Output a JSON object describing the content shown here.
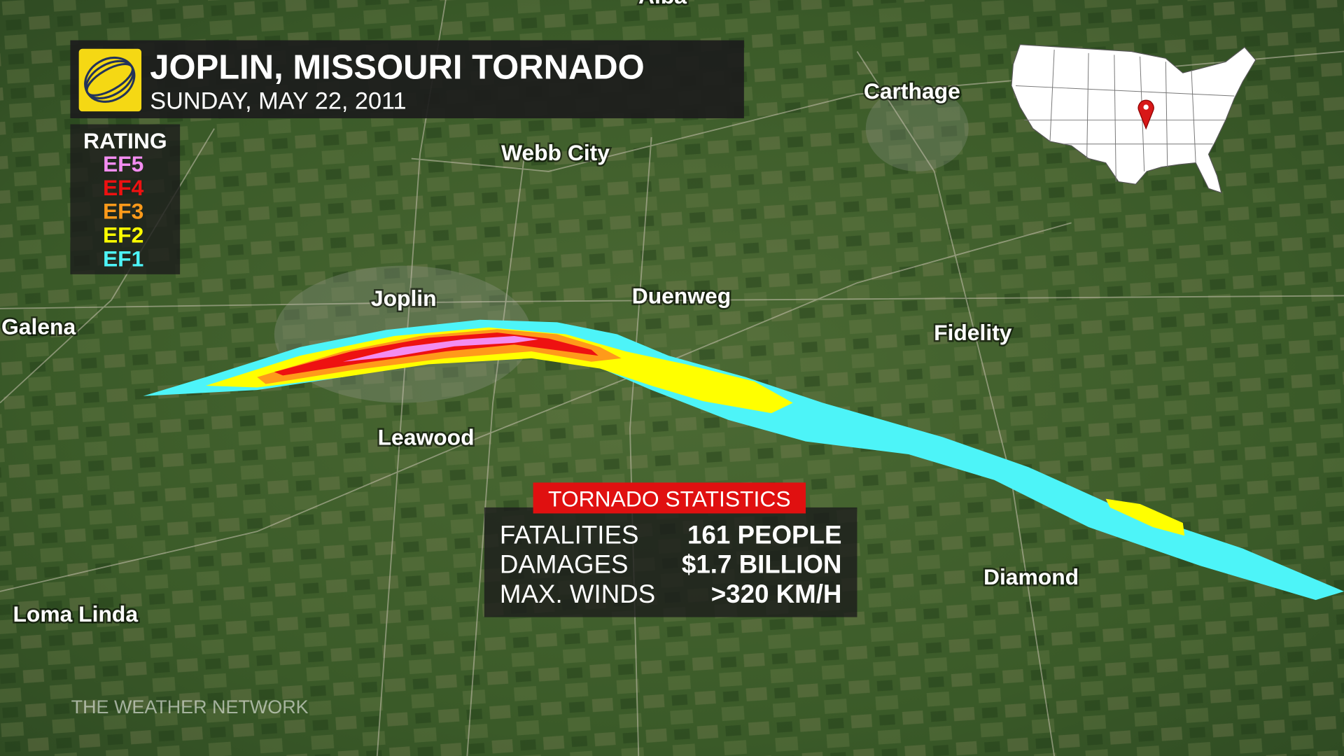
{
  "header": {
    "title": "JOPLIN, MISSOURI TORNADO",
    "date": "SUNDAY, MAY 22, 2011"
  },
  "legend": {
    "title": "RATING",
    "items": [
      {
        "label": "EF5",
        "color": "#f38df0"
      },
      {
        "label": "EF4",
        "color": "#ee1111"
      },
      {
        "label": "EF3",
        "color": "#ff9a1a"
      },
      {
        "label": "EF2",
        "color": "#ffff00"
      },
      {
        "label": "EF1",
        "color": "#4df4f8"
      }
    ]
  },
  "places": [
    "Alba",
    "Carthage",
    "Webb City",
    "Joplin",
    "Duenweg",
    "Galena",
    "Fidelity",
    "Leawood",
    "Diamond",
    "Loma Linda"
  ],
  "stats": {
    "title": "TORNADO STATISTICS",
    "rows": [
      [
        "FATALITIES",
        "161 PEOPLE"
      ],
      [
        "DAMAGES",
        "$1.7 BILLION"
      ],
      [
        "MAX. WINDS",
        ">320 KM/H"
      ]
    ]
  },
  "watermark": "THE WEATHER NETWORK"
}
